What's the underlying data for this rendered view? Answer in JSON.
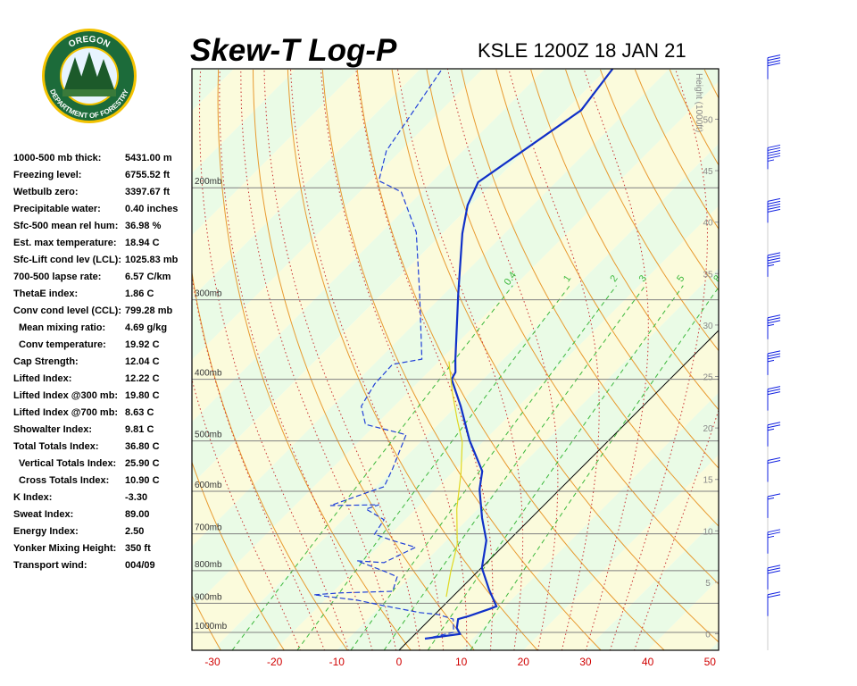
{
  "logo": {
    "top": "OREGON",
    "bottom": "DEPARTMENT OF FORESTRY"
  },
  "stats": [
    {
      "label": "1000-500 mb thick:",
      "value": "5431.00 m"
    },
    {
      "label": "Freezing level:",
      "value": "6755.52 ft"
    },
    {
      "label": "Wetbulb zero:",
      "value": "3397.67 ft"
    },
    {
      "label": "Precipitable water:",
      "value": "0.40 inches"
    },
    {
      "label": "Sfc-500 mean rel hum:",
      "value": "36.98 %"
    },
    {
      "label": "Est. max temperature:",
      "value": "18.94 C"
    },
    {
      "label": "Sfc-Lift cond lev (LCL):",
      "value": "1025.83 mb"
    },
    {
      "label": "700-500 lapse rate:",
      "value": "6.57 C/km"
    },
    {
      "label": "ThetaE index:",
      "value": "1.86 C"
    },
    {
      "label": "Conv cond level (CCL):",
      "value": "799.28 mb"
    },
    {
      "label": "Mean mixing ratio:",
      "value": "4.69 g/kg"
    },
    {
      "label": "Conv temperature:",
      "value": "19.92 C"
    },
    {
      "label": "Cap Strength:",
      "value": "12.04 C"
    },
    {
      "label": "Lifted Index:",
      "value": "12.22 C"
    },
    {
      "label": "Lifted Index @300 mb:",
      "value": "19.80 C"
    },
    {
      "label": "Lifted Index @700 mb:",
      "value": "8.63 C"
    },
    {
      "label": "Showalter Index:",
      "value": "9.81 C"
    },
    {
      "label": "Total Totals Index:",
      "value": "36.80 C"
    },
    {
      "label": "Vertical Totals Index:",
      "value": "25.90 C"
    },
    {
      "label": "Cross Totals Index:",
      "value": "10.90 C"
    },
    {
      "label": "K Index:",
      "value": "-3.30"
    },
    {
      "label": "Sweat Index:",
      "value": "89.00"
    },
    {
      "label": "Energy Index:",
      "value": "2.50"
    },
    {
      "label": "Yonker Mixing Height:",
      "value": "350 ft"
    },
    {
      "label": "Transport wind:",
      "value": "004/09"
    }
  ],
  "chart_data": {
    "type": "skewt",
    "title": "Skew-T Log-P",
    "subtitle": "KSLE 1200Z 18 JAN 21",
    "xlim": [
      -33.3,
      51.4
    ],
    "xticks": [
      -30,
      -20,
      -10,
      0,
      10,
      20,
      30,
      40,
      50
    ],
    "ylim": [
      1067,
      130
    ],
    "log_y": true,
    "yticks": [
      {
        "value": 1000,
        "label": "1000mb"
      },
      {
        "value": 900,
        "label": "900mb"
      },
      {
        "value": 800,
        "label": "800mb"
      },
      {
        "value": 700,
        "label": "700mb"
      },
      {
        "value": 600,
        "label": "600mb"
      },
      {
        "value": 500,
        "label": "500mb"
      },
      {
        "value": 400,
        "label": "400mb"
      },
      {
        "value": 300,
        "label": "300mb"
      },
      {
        "value": 200,
        "label": "200mb"
      }
    ],
    "y2label": "Height (1000ft)",
    "y2lim": [
      -1.6,
      54.9
    ],
    "y2ticks": [
      0,
      5,
      10,
      15,
      20,
      25,
      30,
      35,
      40,
      45,
      50
    ],
    "mixing_ratio": {
      "color": "#3cb83c",
      "values": [
        0.4,
        1,
        2,
        3,
        5,
        8
      ]
    },
    "series": [
      {
        "color": "#1030c8",
        "style": "solid",
        "pressure": [
          1023,
          1006,
          984,
          953,
          943,
          919,
          910,
          856,
          792,
          717,
          661,
          596,
          558,
          499,
          441,
          400,
          390,
          373,
          294,
          236,
          213,
          196,
          151,
          130
        ],
        "values": [
          2.3,
          7.2,
          5.7,
          4.5,
          5.7,
          7.9,
          8.6,
          4.7,
          0.1,
          -3.6,
          -7.9,
          -12.9,
          -15.4,
          -22.4,
          -29.3,
          -35.1,
          -35.6,
          -37.6,
          -47.7,
          -56.8,
          -60.5,
          -62.5,
          -57.5,
          -59.1
        ]
      },
      {
        "color": "#2040d8",
        "style": "dashed",
        "pressure": [
          1023,
          1013,
          1000,
          953,
          937,
          931,
          908,
          890,
          873,
          867,
          862,
          818,
          803,
          772,
          777,
          735,
          717,
          701,
          665,
          640,
          630,
          632,
          590,
          553,
          489,
          471,
          441,
          407,
          379,
          372,
          294,
          235,
          203,
          195,
          175,
          154,
          130
        ],
        "values": [
          2.3,
          3.9,
          5.9,
          3.7,
          0.4,
          -2.7,
          -9.6,
          -14.8,
          -22.6,
          -18.8,
          -10.5,
          -12.1,
          -14.8,
          -21.1,
          -16.5,
          -13.9,
          -18.7,
          -22.6,
          -23.4,
          -28.0,
          -26.6,
          -34.3,
          -28.7,
          -30.2,
          -33.5,
          -41.7,
          -45.3,
          -46.7,
          -47.0,
          -43.1,
          -53.9,
          -64.4,
          -73.3,
          -78.7,
          -82.3,
          -84.1,
          -86.5
        ]
      },
      {
        "color": "#e0d820",
        "style": "solid",
        "pressure": [
          879,
          803,
          728,
          640,
          562,
          502,
          463,
          420,
          375
        ],
        "values": [
          -1.0,
          -4.3,
          -7.6,
          -13.4,
          -18.5,
          -23.3,
          -27.7,
          -32.8,
          -38.4
        ]
      }
    ],
    "winds": {
      "color": "#1020e0",
      "pressure": [
        135,
        187,
        227,
        276,
        346,
        394,
        448,
        510,
        580,
        661,
        752,
        856,
        943
      ],
      "speed": [
        40,
        55,
        50,
        45,
        35,
        35,
        30,
        25,
        20,
        15,
        25,
        30,
        20
      ]
    }
  }
}
